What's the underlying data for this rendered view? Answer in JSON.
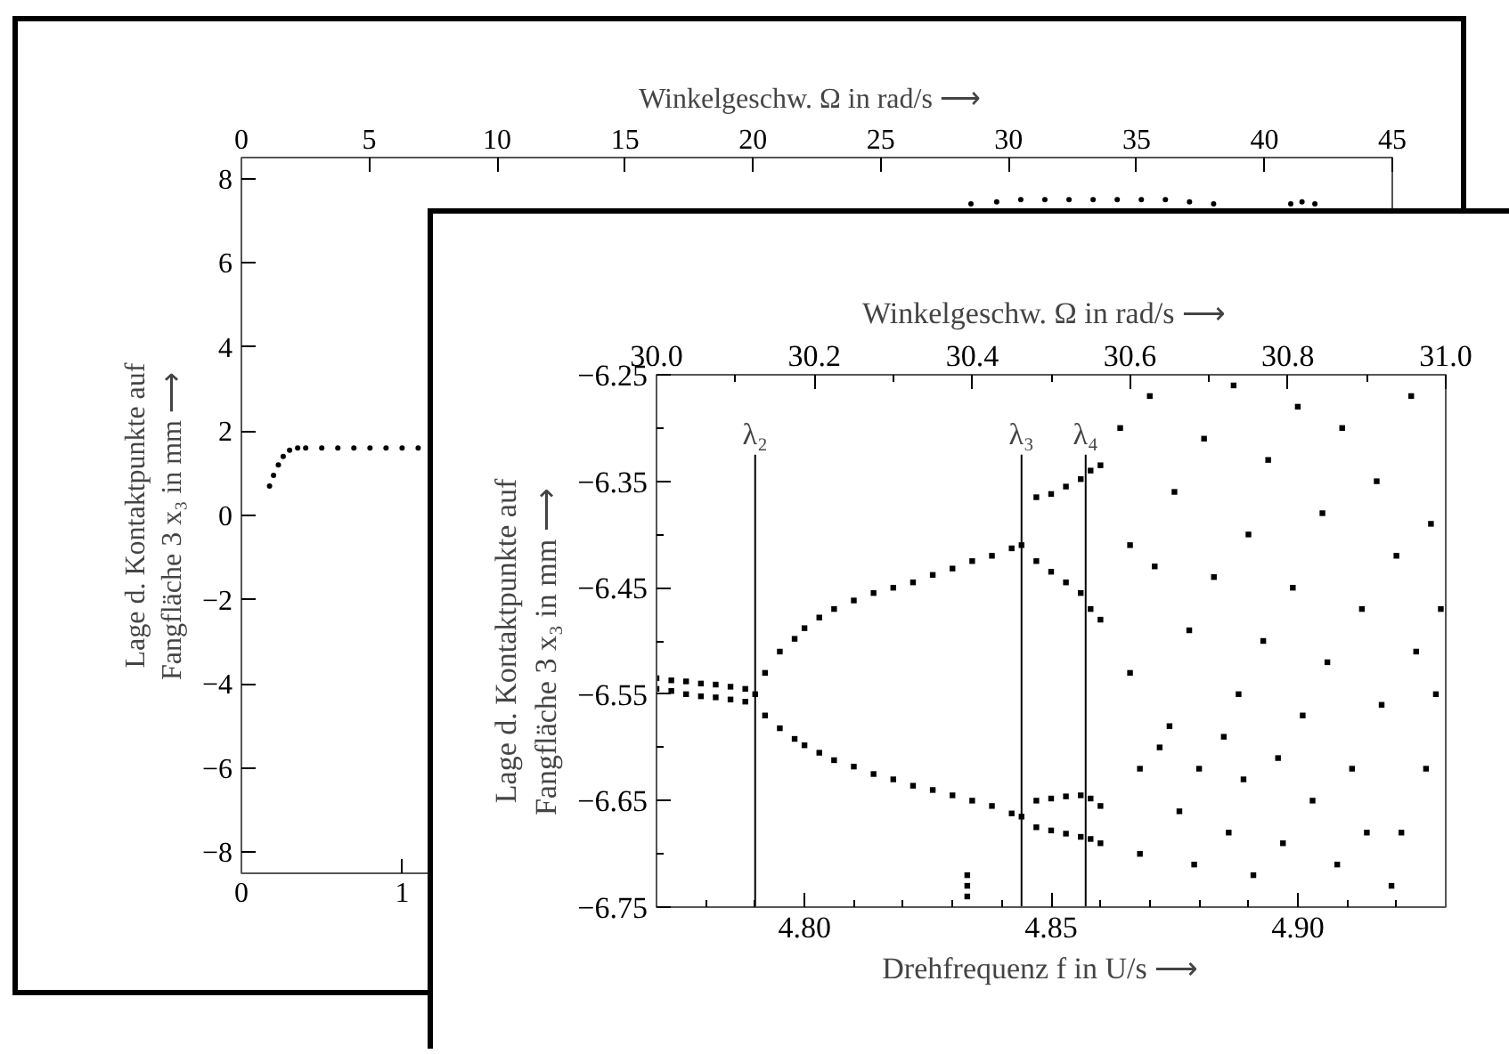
{
  "chart_data": [
    {
      "type": "scatter",
      "x2label": "Winkelgeschw. Ω  in rad/s  ⟶",
      "ylabel": "Lage d. Kontaktpunkte auf\nFangfläche 3  x₃  in mm  ⟶",
      "marker": "circle",
      "color": "#000000",
      "xlim": [
        0,
        7.162
      ],
      "xticks": [
        0,
        1
      ],
      "x2lim": [
        0,
        45
      ],
      "x2ticks": [
        0,
        5,
        10,
        15,
        20,
        25,
        30,
        35,
        40,
        45
      ],
      "ylim": [
        -8.5,
        8.5
      ],
      "yticks": [
        -8,
        -6,
        -4,
        -2,
        0,
        2,
        4,
        6,
        8
      ],
      "x": [
        0.175,
        0.2,
        0.23,
        0.26,
        0.3,
        0.35,
        0.4,
        0.5,
        0.6,
        0.7,
        0.8,
        0.9,
        1.0,
        1.1,
        4.54,
        4.7,
        4.85,
        5.0,
        5.15,
        5.3,
        5.45,
        5.6,
        5.75,
        5.9,
        6.05,
        6.53,
        6.6,
        6.68
      ],
      "values": [
        0.7,
        0.95,
        1.2,
        1.4,
        1.55,
        1.6,
        1.6,
        1.6,
        1.6,
        1.6,
        1.6,
        1.6,
        1.6,
        1.6,
        7.4,
        7.45,
        7.5,
        7.5,
        7.5,
        7.5,
        7.5,
        7.5,
        7.5,
        7.45,
        7.4,
        7.4,
        7.45,
        7.4
      ]
    },
    {
      "type": "scatter",
      "x2label": "Winkelgeschw. Ω  in rad/s  ⟶",
      "xlabel": "Drehfrequenz  f  in U/s  ⟶",
      "ylabel": "Lage d. Kontaktpunkte auf\nFangfläche 3  x₃  in mm  ⟶",
      "marker": "square",
      "color": "#000000",
      "xlim": [
        4.77,
        4.93
      ],
      "xticks": [
        {
          "value": 4.8,
          "label": "4.80"
        },
        {
          "value": 4.85,
          "label": "4.85"
        },
        {
          "value": 4.9,
          "label": "4.90"
        },
        {
          "value": 4.78,
          "label": null
        },
        {
          "value": 4.79,
          "label": null
        },
        {
          "value": 4.81,
          "label": null
        },
        {
          "value": 4.82,
          "label": null
        },
        {
          "value": 4.83,
          "label": null
        },
        {
          "value": 4.84,
          "label": null
        },
        {
          "value": 4.86,
          "label": null
        },
        {
          "value": 4.87,
          "label": null
        },
        {
          "value": 4.88,
          "label": null
        },
        {
          "value": 4.89,
          "label": null
        },
        {
          "value": 4.91,
          "label": null
        },
        {
          "value": 4.92,
          "label": null
        }
      ],
      "x2lim": [
        30.0,
        31.0
      ],
      "x2ticks": [
        {
          "value": 30.0,
          "label": "30.0"
        },
        {
          "value": 30.2,
          "label": "30.2"
        },
        {
          "value": 30.4,
          "label": "30.4"
        },
        {
          "value": 30.6,
          "label": "30.6"
        },
        {
          "value": 30.8,
          "label": "30.8"
        },
        {
          "value": 31.0,
          "label": "31.0"
        },
        {
          "value": 30.1,
          "label": null
        },
        {
          "value": 30.3,
          "label": null
        },
        {
          "value": 30.5,
          "label": null
        },
        {
          "value": 30.7,
          "label": null
        },
        {
          "value": 30.9,
          "label": null
        }
      ],
      "ylim": [
        -6.75,
        -6.25
      ],
      "yticks": [
        -6.25,
        -6.35,
        -6.45,
        -6.55,
        -6.65,
        -6.75,
        {
          "value": -6.3,
          "label": null
        },
        {
          "value": -6.4,
          "label": null
        },
        {
          "value": -6.5,
          "label": null
        },
        {
          "value": -6.6,
          "label": null
        },
        {
          "value": -6.7,
          "label": null
        }
      ],
      "ref_lines": [
        {
          "axis": "x",
          "value": 4.79,
          "label": "λ₂"
        },
        {
          "axis": "x",
          "value": 4.844,
          "label": "λ₃"
        },
        {
          "axis": "x",
          "value": 4.857,
          "label": "λ₄"
        }
      ],
      "x": [
        4.77,
        4.77,
        4.773,
        4.773,
        4.776,
        4.776,
        4.779,
        4.779,
        4.782,
        4.782,
        4.785,
        4.785,
        4.788,
        4.788,
        4.79,
        4.792,
        4.795,
        4.798,
        4.8,
        4.803,
        4.806,
        4.81,
        4.814,
        4.818,
        4.822,
        4.826,
        4.83,
        4.834,
        4.838,
        4.842,
        4.844,
        4.792,
        4.795,
        4.798,
        4.8,
        4.803,
        4.806,
        4.81,
        4.814,
        4.818,
        4.822,
        4.826,
        4.83,
        4.834,
        4.838,
        4.842,
        4.844,
        4.847,
        4.847,
        4.847,
        4.847,
        4.85,
        4.85,
        4.85,
        4.85,
        4.853,
        4.853,
        4.853,
        4.853,
        4.856,
        4.856,
        4.856,
        4.856,
        4.858,
        4.858,
        4.858,
        4.858,
        4.86,
        4.86,
        4.86,
        4.86,
        4.864,
        4.866,
        4.866,
        4.868,
        4.868,
        4.87,
        4.871,
        4.872,
        4.874,
        4.875,
        4.876,
        4.878,
        4.879,
        4.88,
        4.881,
        4.883,
        4.885,
        4.886,
        4.887,
        4.888,
        4.889,
        4.89,
        4.891,
        4.893,
        4.894,
        4.896,
        4.897,
        4.899,
        4.9,
        4.901,
        4.903,
        4.905,
        4.906,
        4.908,
        4.909,
        4.911,
        4.913,
        4.914,
        4.916,
        4.917,
        4.919,
        4.92,
        4.921,
        4.923,
        4.924,
        4.926,
        4.927,
        4.928,
        4.929,
        4.833,
        4.833,
        4.833
      ],
      "values": [
        -6.535,
        -6.545,
        -6.537,
        -6.547,
        -6.538,
        -6.55,
        -6.54,
        -6.552,
        -6.541,
        -6.553,
        -6.543,
        -6.555,
        -6.545,
        -6.557,
        -6.55,
        -6.53,
        -6.51,
        -6.498,
        -6.488,
        -6.478,
        -6.47,
        -6.462,
        -6.455,
        -6.45,
        -6.445,
        -6.438,
        -6.432,
        -6.425,
        -6.42,
        -6.413,
        -6.41,
        -6.57,
        -6.582,
        -6.592,
        -6.598,
        -6.605,
        -6.612,
        -6.618,
        -6.625,
        -6.63,
        -6.636,
        -6.64,
        -6.645,
        -6.65,
        -6.655,
        -6.662,
        -6.665,
        -6.365,
        -6.425,
        -6.65,
        -6.675,
        -6.362,
        -6.435,
        -6.648,
        -6.678,
        -6.355,
        -6.445,
        -6.646,
        -6.681,
        -6.348,
        -6.455,
        -6.645,
        -6.684,
        -6.34,
        -6.47,
        -6.648,
        -6.686,
        -6.335,
        -6.48,
        -6.655,
        -6.69,
        -6.3,
        -6.41,
        -6.53,
        -6.62,
        -6.7,
        -6.27,
        -6.43,
        -6.6,
        -6.58,
        -6.36,
        -6.66,
        -6.49,
        -6.71,
        -6.62,
        -6.31,
        -6.44,
        -6.59,
        -6.68,
        -6.26,
        -6.55,
        -6.63,
        -6.4,
        -6.72,
        -6.5,
        -6.33,
        -6.61,
        -6.69,
        -6.45,
        -6.28,
        -6.57,
        -6.65,
        -6.38,
        -6.52,
        -6.71,
        -6.3,
        -6.62,
        -6.47,
        -6.68,
        -6.35,
        -6.56,
        -6.73,
        -6.42,
        -6.68,
        -6.27,
        -6.51,
        -6.62,
        -6.39,
        -6.55,
        -6.47,
        -6.72,
        -6.73,
        -6.74
      ]
    }
  ]
}
